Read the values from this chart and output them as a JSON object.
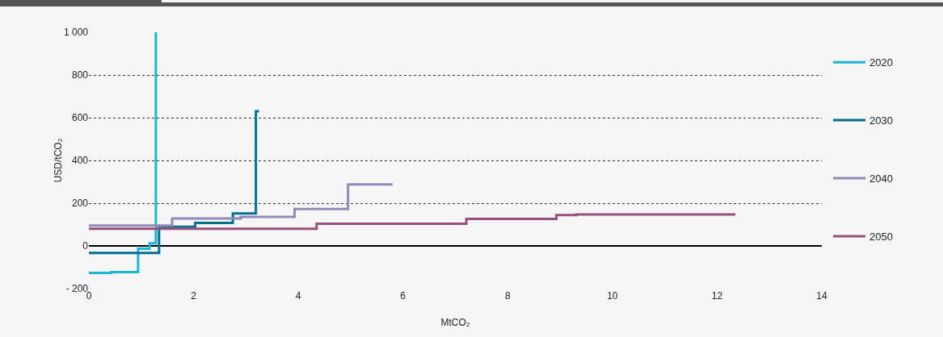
{
  "chart_data": {
    "type": "step",
    "xlabel": "MtCO₂",
    "ylabel": "USD/tCO₂",
    "xlim": [
      0,
      14
    ],
    "xticks": [
      0,
      2,
      4,
      6,
      8,
      10,
      12,
      14
    ],
    "ylim": [
      -200,
      1000
    ],
    "yticks": [
      {
        "value": -200,
        "label": "- 200"
      },
      0,
      200,
      400,
      600,
      800,
      {
        "value": 1000,
        "label": "1 000"
      }
    ],
    "grid": "y",
    "legend": "right",
    "marker": "none",
    "line_style": "solid",
    "series": [
      {
        "name": "2020",
        "color": "#1bb5d4",
        "x": [
          0,
          0.43,
          0.94,
          1.16,
          1.28,
          1.28
        ],
        "values": [
          -126,
          -123,
          -13,
          12,
          12,
          1000
        ]
      },
      {
        "name": "2030",
        "color": "#006f94",
        "x": [
          0,
          1.34,
          2.03,
          2.75,
          3.19,
          3.19,
          3.25
        ],
        "values": [
          -33,
          90,
          108,
          152,
          152,
          630,
          630
        ]
      },
      {
        "name": "2040",
        "color": "#9189b8",
        "x": [
          0,
          1.59,
          2.9,
          3.93,
          4.95,
          5.8
        ],
        "values": [
          95,
          128,
          136,
          173,
          288,
          288
        ]
      },
      {
        "name": "2050",
        "color": "#96507e",
        "x": [
          0,
          4.35,
          7.21,
          8.93,
          9.31,
          12.35
        ],
        "values": [
          80,
          104,
          126,
          144,
          147,
          147
        ]
      }
    ]
  }
}
